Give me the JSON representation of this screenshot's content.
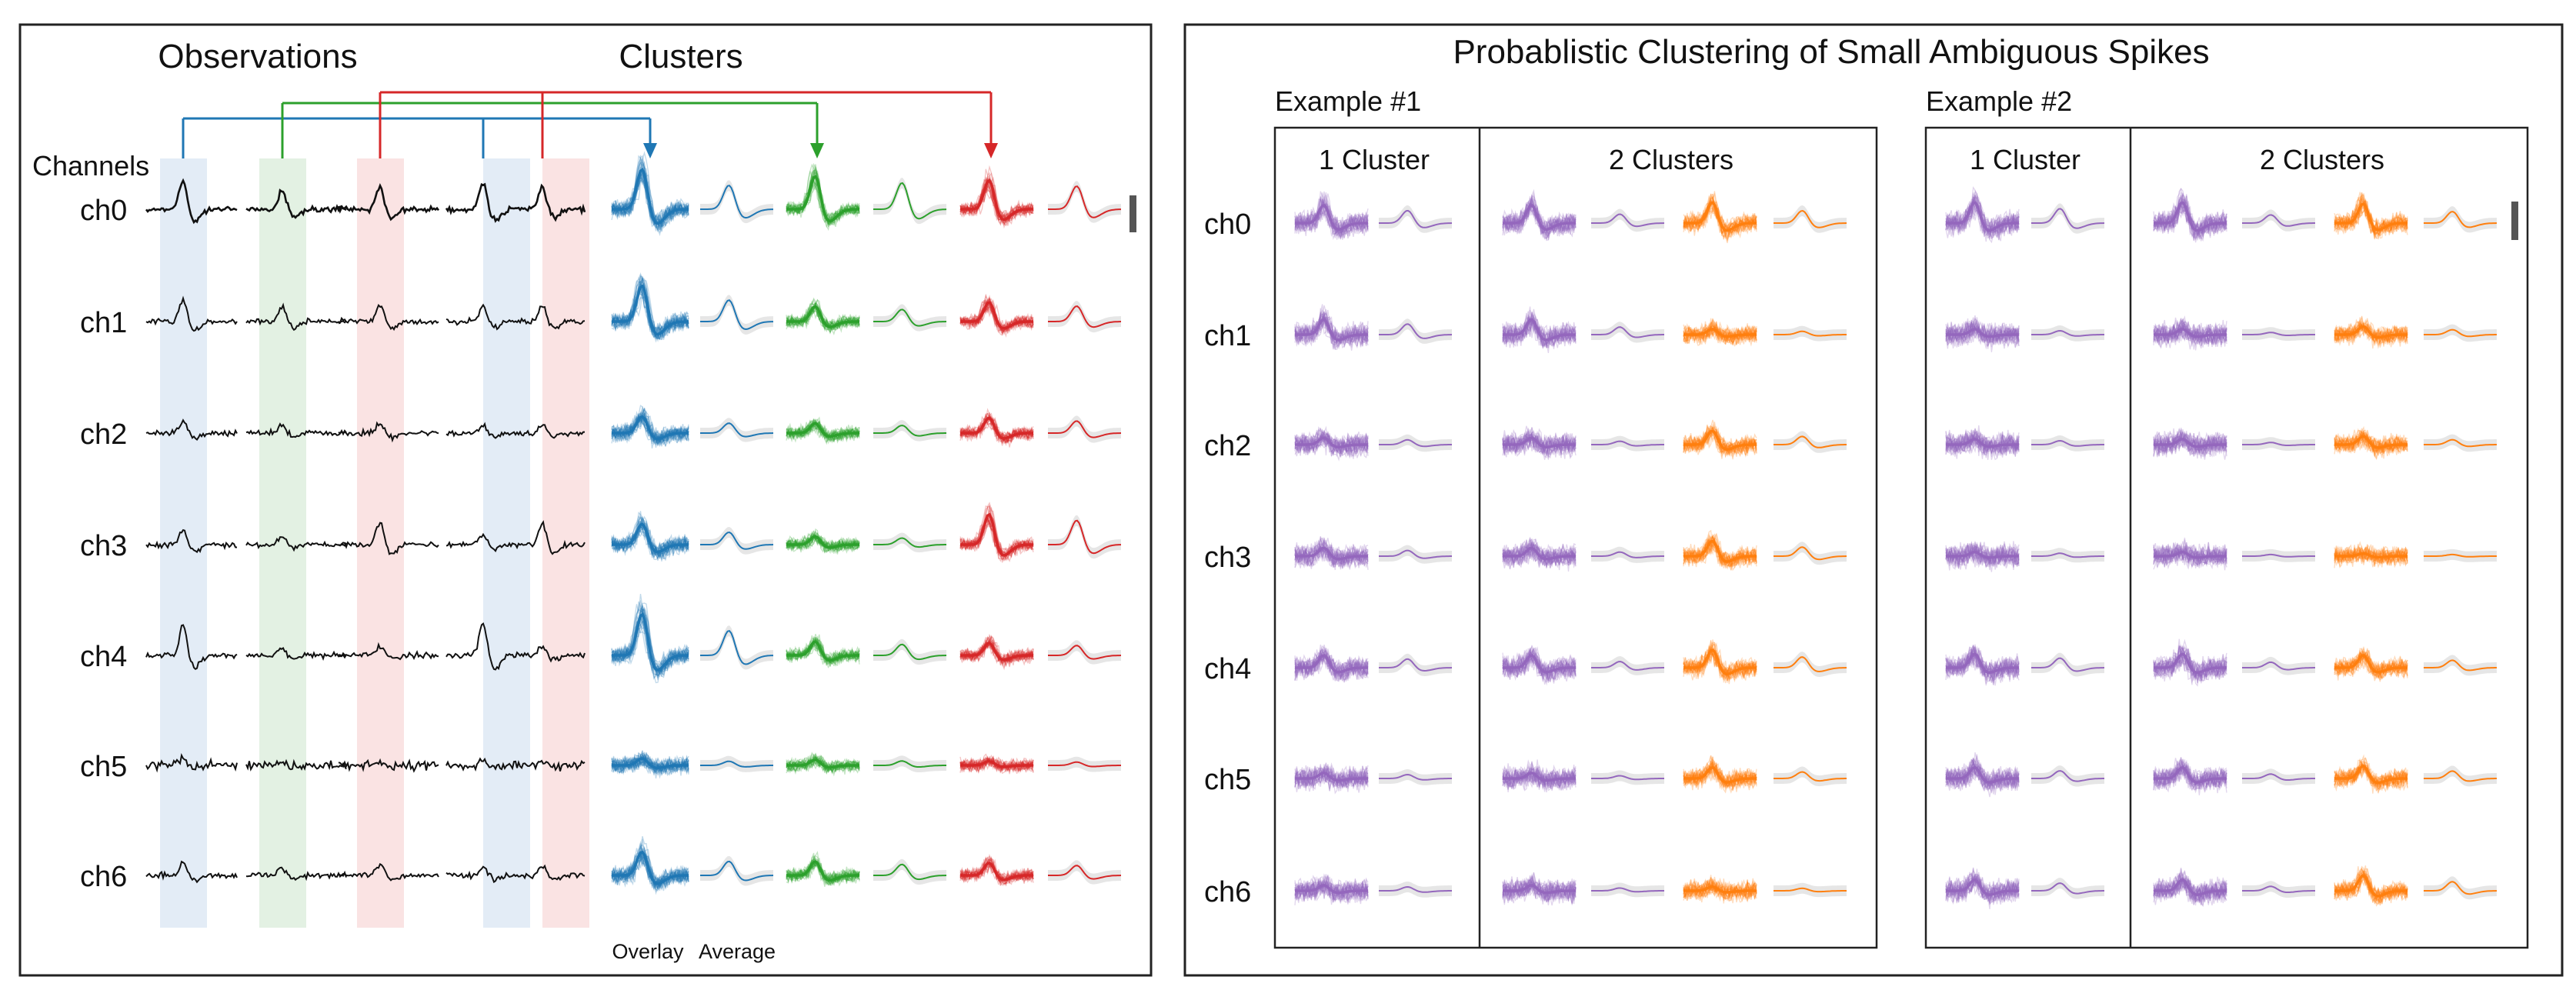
{
  "left_panel": {
    "header_observations": "Observations",
    "header_clusters": "Clusters",
    "channels_label": "Channels",
    "channels": [
      "ch0",
      "ch1",
      "ch2",
      "ch3",
      "ch4",
      "ch5",
      "ch6"
    ],
    "footer_overlay": "Overlay",
    "footer_average": "Average"
  },
  "right_panel": {
    "title": "Probablistic Clustering of Small Ambiguous Spikes",
    "channels": [
      "ch0",
      "ch1",
      "ch2",
      "ch3",
      "ch4",
      "ch5",
      "ch6"
    ],
    "examples": [
      {
        "label": "Example #1",
        "one_cluster": "1 Cluster",
        "two_clusters": "2 Clusters"
      },
      {
        "label": "Example #2",
        "one_cluster": "1 Cluster",
        "two_clusters": "2 Clusters"
      }
    ]
  },
  "colors": {
    "blue": "#1f77b4",
    "green": "#2ca02c",
    "red": "#d62728",
    "purple": "#9467bd",
    "orange": "#ff7f0e",
    "blue_band": "#e3ecf6",
    "green_band": "#e3f1e3",
    "red_band": "#fae3e3",
    "trace": "#111111",
    "scale_bar": "#555555"
  }
}
